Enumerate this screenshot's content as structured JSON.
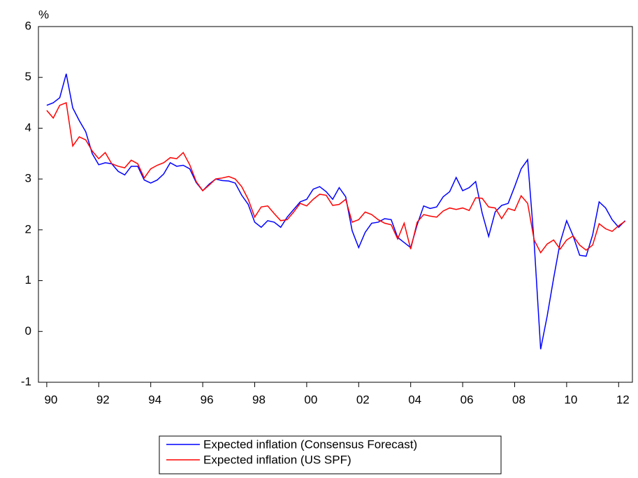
{
  "chart_data": {
    "type": "line",
    "y_label": "%",
    "x": [
      1990,
      1990.25,
      1990.5,
      1990.75,
      1991,
      1991.25,
      1991.5,
      1991.75,
      1992,
      1992.25,
      1992.5,
      1992.75,
      1993,
      1993.25,
      1993.5,
      1993.75,
      1994,
      1994.25,
      1994.5,
      1994.75,
      1995,
      1995.25,
      1995.5,
      1995.75,
      1996,
      1996.25,
      1996.5,
      1996.75,
      1997,
      1997.25,
      1997.5,
      1997.75,
      1998,
      1998.25,
      1998.5,
      1998.75,
      1999,
      1999.25,
      1999.5,
      1999.75,
      2000,
      2000.25,
      2000.5,
      2000.75,
      2001,
      2001.25,
      2001.5,
      2001.75,
      2002,
      2002.25,
      2002.5,
      2002.75,
      2003,
      2003.25,
      2003.5,
      2003.75,
      2004,
      2004.25,
      2004.5,
      2004.75,
      2005,
      2005.25,
      2005.5,
      2005.75,
      2006,
      2006.25,
      2006.5,
      2006.75,
      2007,
      2007.25,
      2007.5,
      2007.75,
      2008,
      2008.25,
      2008.5,
      2008.75,
      2009,
      2009.25,
      2009.5,
      2009.75,
      2010,
      2010.25,
      2010.5,
      2010.75,
      2011,
      2011.25,
      2011.5,
      2011.75,
      2012,
      2012.25
    ],
    "series": [
      {
        "name": "Expected inflation (Consensus Forecast)",
        "color": "#0000ff",
        "values": [
          4.45,
          4.5,
          4.6,
          5.07,
          4.4,
          4.15,
          3.93,
          3.5,
          3.28,
          3.32,
          3.3,
          3.15,
          3.08,
          3.25,
          3.25,
          2.98,
          2.92,
          2.98,
          3.1,
          3.32,
          3.25,
          3.27,
          3.2,
          2.93,
          2.77,
          2.9,
          3.0,
          2.97,
          2.96,
          2.92,
          2.68,
          2.5,
          2.15,
          2.05,
          2.18,
          2.15,
          2.05,
          2.25,
          2.4,
          2.55,
          2.6,
          2.8,
          2.85,
          2.75,
          2.6,
          2.83,
          2.65,
          1.98,
          1.65,
          1.95,
          2.13,
          2.15,
          2.22,
          2.2,
          1.85,
          1.75,
          1.65,
          2.1,
          2.47,
          2.42,
          2.45,
          2.65,
          2.75,
          3.03,
          2.77,
          2.83,
          2.95,
          2.33,
          1.87,
          2.35,
          2.48,
          2.52,
          2.85,
          3.2,
          3.38,
          1.75,
          -0.35,
          0.3,
          1.05,
          1.75,
          2.18,
          1.88,
          1.5,
          1.48,
          1.9,
          2.55,
          2.43,
          2.2,
          2.05,
          2.18
        ]
      },
      {
        "name": "Expected inflation (US SPF)",
        "color": "#ff0000",
        "values": [
          4.35,
          4.2,
          4.45,
          4.5,
          3.65,
          3.83,
          3.77,
          3.55,
          3.4,
          3.52,
          3.3,
          3.25,
          3.22,
          3.37,
          3.3,
          3.02,
          3.2,
          3.27,
          3.32,
          3.42,
          3.4,
          3.52,
          3.28,
          2.95,
          2.77,
          2.88,
          3.0,
          3.02,
          3.05,
          3.0,
          2.85,
          2.6,
          2.25,
          2.45,
          2.47,
          2.32,
          2.18,
          2.2,
          2.35,
          2.52,
          2.47,
          2.6,
          2.7,
          2.68,
          2.48,
          2.5,
          2.6,
          2.15,
          2.2,
          2.35,
          2.3,
          2.2,
          2.13,
          2.1,
          1.82,
          2.13,
          1.62,
          2.15,
          2.3,
          2.27,
          2.25,
          2.37,
          2.43,
          2.4,
          2.43,
          2.38,
          2.63,
          2.62,
          2.45,
          2.43,
          2.22,
          2.42,
          2.38,
          2.67,
          2.52,
          1.8,
          1.55,
          1.72,
          1.8,
          1.62,
          1.8,
          1.88,
          1.7,
          1.6,
          1.7,
          2.12,
          2.02,
          1.97,
          2.08,
          2.17
        ]
      }
    ],
    "xlim": [
      1989.68,
      2012.53
    ],
    "xticks": [
      {
        "value": 1990,
        "label": "90"
      },
      {
        "value": 1992,
        "label": "92"
      },
      {
        "value": 1994,
        "label": "94"
      },
      {
        "value": 1996,
        "label": "96"
      },
      {
        "value": 1998,
        "label": "98"
      },
      {
        "value": 2000,
        "label": "00"
      },
      {
        "value": 2002,
        "label": "02"
      },
      {
        "value": 2004,
        "label": "04"
      },
      {
        "value": 2006,
        "label": "06"
      },
      {
        "value": 2008,
        "label": "08"
      },
      {
        "value": 2010,
        "label": "10"
      },
      {
        "value": 2012,
        "label": "12"
      }
    ],
    "ylim": [
      -1,
      6
    ],
    "yticks": [
      -1,
      0,
      1,
      2,
      3,
      4,
      5,
      6
    ],
    "grid": false,
    "legend": "bottom"
  }
}
